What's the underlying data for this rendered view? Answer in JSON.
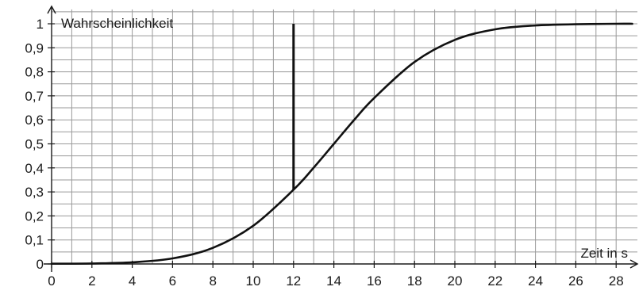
{
  "chart_data": {
    "type": "line",
    "ylabel": "Wahrscheinlichkeit",
    "xlabel": "Zeit in s",
    "xlim": [
      0,
      28.8
    ],
    "ylim": [
      0,
      1.04
    ],
    "grid": true,
    "x_ticks": [
      0,
      2,
      4,
      6,
      8,
      10,
      12,
      14,
      16,
      18,
      20,
      22,
      24,
      26,
      28
    ],
    "x_tick_labels": [
      "0",
      "2",
      "4",
      "6",
      "8",
      "10",
      "12",
      "14",
      "16",
      "18",
      "20",
      "22",
      "24",
      "26",
      "28"
    ],
    "y_ticks": [
      0,
      0.1,
      0.2,
      0.3,
      0.4,
      0.5,
      0.6,
      0.7,
      0.8,
      0.9,
      1
    ],
    "y_tick_labels": [
      "0",
      "0,1",
      "0,2",
      "0,3",
      "0,4",
      "0,5",
      "0,6",
      "0,7",
      "0,8",
      "0,9",
      "1"
    ],
    "series": [
      {
        "x": [
          0,
          2,
          4,
          6,
          8,
          10,
          12,
          13,
          14,
          15,
          16,
          18,
          20,
          22,
          24,
          26,
          28,
          28.8
        ],
        "y": [
          0.001,
          0.002,
          0.007,
          0.023,
          0.067,
          0.159,
          0.309,
          0.401,
          0.5,
          0.599,
          0.691,
          0.841,
          0.933,
          0.977,
          0.993,
          0.998,
          1.0,
          1.0
        ]
      }
    ],
    "annotations": [
      {
        "type": "vertical-line",
        "x": 12,
        "y_from": 0.309,
        "y_to": 1.0
      }
    ]
  }
}
